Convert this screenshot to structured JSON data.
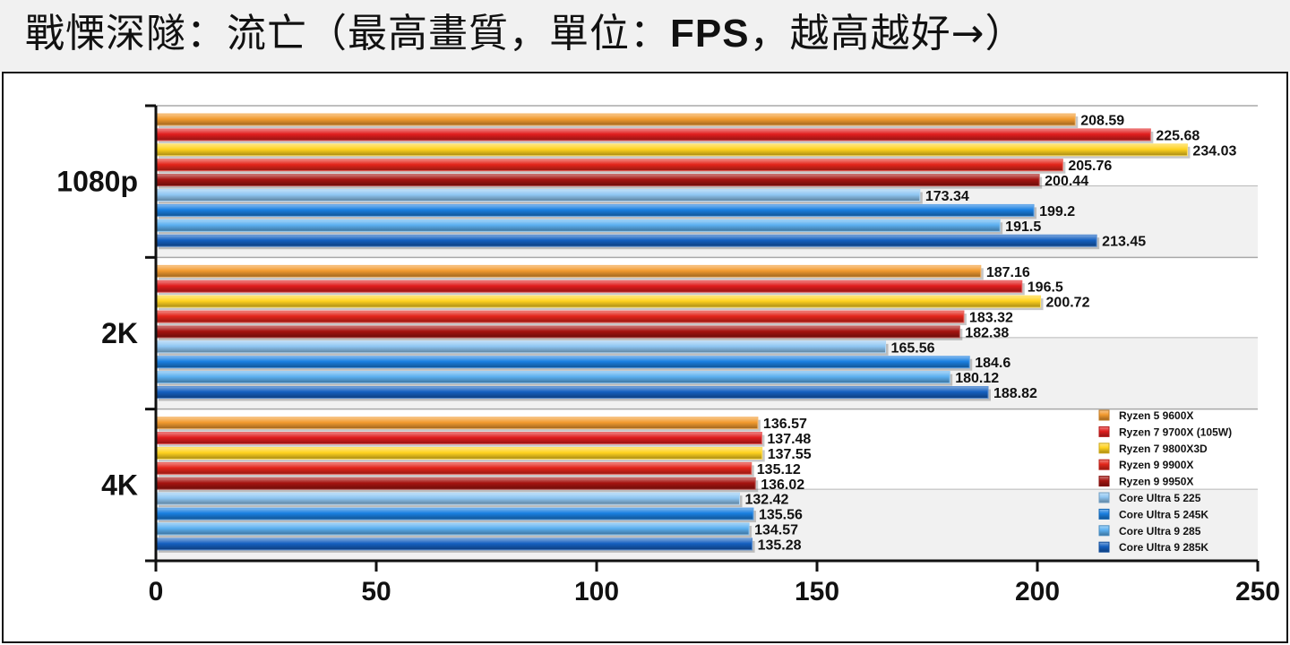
{
  "title": {
    "prefix": "戰慄深隧：流亡（最高畫質，單位：",
    "bold": "FPS",
    "suffix": "，越高越好→）"
  },
  "chart_data": {
    "type": "bar",
    "orientation": "horizontal",
    "title": "戰慄深隧：流亡（最高畫質，單位：FPS，越高越好→）",
    "categories": [
      "1080p",
      "2K",
      "4K"
    ],
    "xlim": [
      0,
      250
    ],
    "xticks": [
      0,
      50,
      100,
      150,
      200,
      250
    ],
    "legend_position": "bottom-right",
    "series": [
      {
        "name": "Ryzen 5 9600X",
        "values": [
          208.59,
          187.16,
          136.57
        ],
        "labels": [
          "208.59",
          "187.16",
          "136.57"
        ],
        "color": "#f29a2e"
      },
      {
        "name": "Ryzen 7 9700X (105W)",
        "values": [
          225.68,
          196.5,
          137.48
        ],
        "labels": [
          "225.68",
          "196.5",
          "137.48"
        ],
        "color": "#e01e1e"
      },
      {
        "name": "Ryzen 7 9800X3D",
        "values": [
          234.03,
          200.72,
          137.55
        ],
        "labels": [
          "234.03",
          "200.72",
          "137.55"
        ],
        "color": "#ffd21f"
      },
      {
        "name": "Ryzen 9 9900X",
        "values": [
          205.76,
          183.32,
          135.12
        ],
        "labels": [
          "205.76",
          "183.32",
          "135.12"
        ],
        "color": "#e3261b"
      },
      {
        "name": "Ryzen 9 9950X",
        "values": [
          200.44,
          182.38,
          136.02
        ],
        "labels": [
          "200.44",
          "182.38",
          "136.02"
        ],
        "color": "#a51410"
      },
      {
        "name": "Core Ultra 5 225",
        "values": [
          173.34,
          165.56,
          132.42
        ],
        "labels": [
          "173.34",
          "165.56",
          "132.42"
        ],
        "color": "#8fc6f2"
      },
      {
        "name": "Core Ultra 5 245K",
        "values": [
          199.2,
          184.6,
          135.56
        ],
        "labels": [
          "199.2",
          "184.6",
          "135.56"
        ],
        "color": "#1a7fe0"
      },
      {
        "name": "Core Ultra 9 285",
        "values": [
          191.5,
          180.12,
          134.57
        ],
        "labels": [
          "191.5",
          "180.12",
          "134.57"
        ],
        "color": "#5cb0f0"
      },
      {
        "name": "Core Ultra 9 285K",
        "values": [
          213.45,
          188.82,
          135.28
        ],
        "labels": [
          "213.45",
          "188.82",
          "135.28"
        ],
        "color": "#1560c0"
      }
    ]
  }
}
